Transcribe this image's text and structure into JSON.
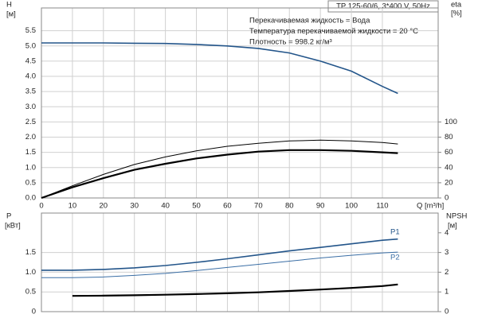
{
  "chart_data": [
    {
      "type": "line",
      "title": "TP 125-60/6, 3*400 V, 50Hz",
      "annotations": [
        "Перекачиваемая жидкость = Вода",
        "Температура перекачиваемой жидкости = 20 °C",
        "Плотность = 998.2 кг/м³"
      ],
      "ylabel": [
        "H",
        "[м]"
      ],
      "y2label": [
        "eta",
        "[%]"
      ],
      "xlabel": "Q [m³/h]",
      "x": [
        0,
        10,
        20,
        30,
        40,
        50,
        60,
        70,
        80,
        90,
        100,
        110,
        115
      ],
      "xlim": [
        0,
        128
      ],
      "xticks": [
        0,
        10,
        20,
        30,
        40,
        50,
        60,
        70,
        80,
        90,
        100,
        110
      ],
      "ylim": [
        0,
        6.25
      ],
      "yticks": [
        {
          "value": 0,
          "label": "0.0"
        },
        0.5,
        {
          "value": 1,
          "label": "1.0"
        },
        1.5,
        {
          "value": 2,
          "label": "2.0"
        },
        2.5,
        {
          "value": 3,
          "label": "3.0"
        },
        3.5,
        {
          "value": 4,
          "label": "4.0"
        },
        4.5,
        {
          "value": 5,
          "label": "5.0"
        },
        5.5
      ],
      "y2lim": [
        0,
        250
      ],
      "y2ticks": [
        0,
        20,
        40,
        60,
        80,
        100
      ],
      "grid": true,
      "show_xtick_labels": true,
      "series": [
        {
          "color": "#23558a",
          "line_width": 1.6,
          "values": [
            5.1,
            5.1,
            5.1,
            5.09,
            5.08,
            5.05,
            5.0,
            4.92,
            4.77,
            4.5,
            4.17,
            3.67,
            3.44
          ]
        },
        {
          "color": "#000000",
          "line_width": 1,
          "axis": "y2",
          "values": [
            0,
            16,
            31,
            44,
            54,
            62,
            68,
            72,
            75,
            76,
            75,
            73,
            71
          ]
        },
        {
          "color": "#000000",
          "line_width": 2.2,
          "axis": "y2",
          "values": [
            0,
            14,
            26,
            37,
            45,
            52,
            57,
            61,
            63,
            63,
            62,
            60,
            59
          ]
        }
      ]
    },
    {
      "type": "line",
      "ylabel": [
        "P",
        "[кВт]"
      ],
      "y2label": [
        "NPSH",
        "[м]"
      ],
      "x": [
        0,
        10,
        20,
        30,
        40,
        50,
        60,
        70,
        80,
        90,
        100,
        110,
        115
      ],
      "xlim": [
        0,
        128
      ],
      "xticks": [
        0,
        10,
        20,
        30,
        40,
        50,
        60,
        70,
        80,
        90,
        100,
        110
      ],
      "ylim": [
        0,
        2.5
      ],
      "yticks": [
        0,
        0.5,
        {
          "value": 1,
          "label": "1.0"
        },
        1.5
      ],
      "y2lim": [
        0,
        5
      ],
      "y2ticks": [
        0,
        1,
        2,
        3,
        4
      ],
      "grid": true,
      "show_xtick_labels": false,
      "series": [
        {
          "name": "P1",
          "color": "#23558a",
          "line_width": 1.6,
          "values": [
            1.05,
            1.05,
            1.07,
            1.11,
            1.17,
            1.25,
            1.34,
            1.44,
            1.54,
            1.63,
            1.72,
            1.81,
            1.84
          ]
        },
        {
          "name": "P2",
          "color": "#3a6ea5",
          "line_width": 1,
          "values": [
            0.86,
            0.86,
            0.88,
            0.92,
            0.97,
            1.04,
            1.12,
            1.2,
            1.28,
            1.36,
            1.43,
            1.49,
            1.51
          ]
        },
        {
          "color": "#000000",
          "line_width": 2.2,
          "axis": "y2",
          "values": [
            null,
            0.8,
            0.81,
            0.83,
            0.86,
            0.89,
            0.93,
            0.98,
            1.05,
            1.12,
            1.2,
            1.3,
            1.38
          ]
        }
      ]
    }
  ]
}
